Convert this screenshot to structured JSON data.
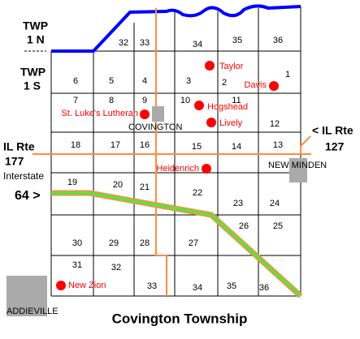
{
  "title": "Covington Township",
  "township_labels": [
    {
      "line1": "TWP",
      "line2": "1 N"
    },
    {
      "line1": "TWP",
      "line2": "1 S"
    }
  ],
  "route_labels": {
    "il177": {
      "line1": "IL Rte",
      "line2": "177"
    },
    "i64": {
      "line1": "Interstate",
      "line2": "64 >"
    },
    "il127": {
      "line1": "< IL Rte",
      "line2": "127"
    }
  },
  "towns": [
    "COVINGTON",
    "NEW MINDEN",
    "ADDIEVILLE"
  ],
  "sections": [
    32,
    33,
    34,
    35,
    36,
    6,
    5,
    4,
    3,
    2,
    1,
    7,
    8,
    9,
    10,
    11,
    12,
    18,
    17,
    16,
    15,
    14,
    13,
    19,
    20,
    21,
    22,
    23,
    24,
    30,
    29,
    28,
    27,
    26,
    25,
    31,
    32,
    33,
    34,
    35,
    36
  ],
  "churches": [
    "Taylor",
    "Davis",
    "St. Luke's Lutheran",
    "Hogshead",
    "Lively",
    "Heidenrich",
    "New Zion"
  ]
}
